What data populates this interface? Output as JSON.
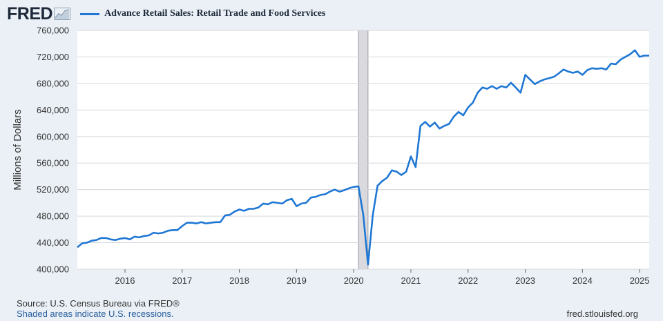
{
  "header": {
    "logo_text": "FRED",
    "legend_label": "Advance Retail Sales: Retail Trade and Food Services",
    "series_color": "#1f77d4"
  },
  "footer": {
    "source": "Source: U.S. Census Bureau via FRED®",
    "recession_note": "Shaded areas indicate U.S. recessions.",
    "site": "fred.stlouisfed.org"
  },
  "chart_data": {
    "type": "line",
    "ylabel": "Millions of Dollars",
    "ylim": [
      400000,
      760000
    ],
    "yticks": [
      400000,
      440000,
      480000,
      520000,
      560000,
      600000,
      640000,
      680000,
      720000,
      760000
    ],
    "ytick_labels": [
      "400,000",
      "440,000",
      "480,000",
      "520,000",
      "560,000",
      "600,000",
      "640,000",
      "680,000",
      "720,000",
      "760,000"
    ],
    "xlim": [
      2015.167,
      2025.167
    ],
    "xticks": [
      2016,
      2017,
      2018,
      2019,
      2020,
      2021,
      2022,
      2023,
      2024,
      2025
    ],
    "xtick_labels": [
      "2016",
      "2017",
      "2018",
      "2019",
      "2020",
      "2021",
      "2022",
      "2023",
      "2024",
      "2025"
    ],
    "grid": true,
    "recessions": [
      [
        2020.083,
        2020.25
      ]
    ],
    "series": [
      {
        "color": "#1f77d4",
        "x": [
          2015.167,
          2015.25,
          2015.333,
          2015.417,
          2015.5,
          2015.583,
          2015.667,
          2015.75,
          2015.833,
          2015.917,
          2016.0,
          2016.083,
          2016.167,
          2016.25,
          2016.333,
          2016.417,
          2016.5,
          2016.583,
          2016.667,
          2016.75,
          2016.833,
          2016.917,
          2017.0,
          2017.083,
          2017.167,
          2017.25,
          2017.333,
          2017.417,
          2017.5,
          2017.583,
          2017.667,
          2017.75,
          2017.833,
          2017.917,
          2018.0,
          2018.083,
          2018.167,
          2018.25,
          2018.333,
          2018.417,
          2018.5,
          2018.583,
          2018.667,
          2018.75,
          2018.833,
          2018.917,
          2019.0,
          2019.083,
          2019.167,
          2019.25,
          2019.333,
          2019.417,
          2019.5,
          2019.583,
          2019.667,
          2019.75,
          2019.833,
          2019.917,
          2020.0,
          2020.083,
          2020.167,
          2020.25,
          2020.333,
          2020.417,
          2020.5,
          2020.583,
          2020.667,
          2020.75,
          2020.833,
          2020.917,
          2021.0,
          2021.083,
          2021.167,
          2021.25,
          2021.333,
          2021.417,
          2021.5,
          2021.583,
          2021.667,
          2021.75,
          2021.833,
          2021.917,
          2022.0,
          2022.083,
          2022.167,
          2022.25,
          2022.333,
          2022.417,
          2022.5,
          2022.583,
          2022.667,
          2022.75,
          2022.833,
          2022.917,
          2023.0,
          2023.083,
          2023.167,
          2023.25,
          2023.333,
          2023.417,
          2023.5,
          2023.583,
          2023.667,
          2023.75,
          2023.833,
          2023.917,
          2024.0,
          2024.083,
          2024.167,
          2024.25,
          2024.333,
          2024.417,
          2024.5,
          2024.583,
          2024.667,
          2024.75,
          2024.833,
          2024.917,
          2025.0,
          2025.083,
          2025.167
        ],
        "values": [
          433000,
          439000,
          440000,
          443000,
          444000,
          447000,
          447000,
          445000,
          444000,
          446000,
          447000,
          445000,
          449000,
          448000,
          450000,
          451000,
          455000,
          454000,
          455000,
          458000,
          459000,
          459000,
          465000,
          470000,
          470000,
          469000,
          471000,
          469000,
          470000,
          471000,
          471000,
          481000,
          482000,
          487000,
          490000,
          488000,
          491000,
          491000,
          493000,
          499000,
          498000,
          501000,
          500000,
          499000,
          504000,
          506000,
          495000,
          499000,
          500000,
          508000,
          509000,
          512000,
          513000,
          517000,
          520000,
          517000,
          519000,
          522000,
          524000,
          525000,
          482000,
          407000,
          481000,
          526000,
          533000,
          538000,
          549000,
          547000,
          542000,
          547000,
          570000,
          554000,
          616000,
          622000,
          615000,
          621000,
          612000,
          616000,
          619000,
          630000,
          637000,
          632000,
          644000,
          651000,
          666000,
          674000,
          672000,
          676000,
          672000,
          676000,
          674000,
          681000,
          674000,
          666000,
          693000,
          686000,
          679000,
          683000,
          686000,
          688000,
          690000,
          695000,
          701000,
          698000,
          696000,
          698000,
          693000,
          700000,
          703000,
          702000,
          703000,
          701000,
          710000,
          709000,
          716000,
          720000,
          724000,
          730000,
          720000,
          722000,
          722000
        ]
      }
    ]
  }
}
